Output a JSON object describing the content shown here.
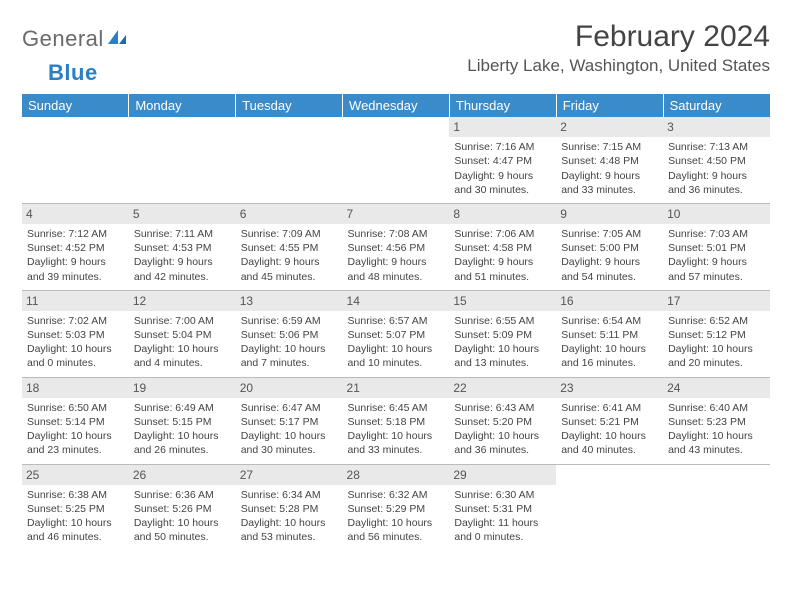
{
  "logo": {
    "text_gray": "General",
    "text_blue": "Blue"
  },
  "title": "February 2024",
  "location": "Liberty Lake, Washington, United States",
  "colors": {
    "header_bg": "#3a8bc9",
    "header_fg": "#ffffff",
    "daynum_bg": "#e9e9e9",
    "text": "#444444",
    "divider": "#bbbbbb",
    "logo_gray": "#6a6a6a",
    "logo_blue": "#2b7fc3"
  },
  "day_names": [
    "Sunday",
    "Monday",
    "Tuesday",
    "Wednesday",
    "Thursday",
    "Friday",
    "Saturday"
  ],
  "weeks": [
    [
      {
        "empty": true
      },
      {
        "empty": true
      },
      {
        "empty": true
      },
      {
        "empty": true
      },
      {
        "d": "1",
        "sr": "7:16 AM",
        "ss": "4:47 PM",
        "dl1": "Daylight: 9 hours",
        "dl2": "and 30 minutes."
      },
      {
        "d": "2",
        "sr": "7:15 AM",
        "ss": "4:48 PM",
        "dl1": "Daylight: 9 hours",
        "dl2": "and 33 minutes."
      },
      {
        "d": "3",
        "sr": "7:13 AM",
        "ss": "4:50 PM",
        "dl1": "Daylight: 9 hours",
        "dl2": "and 36 minutes."
      }
    ],
    [
      {
        "d": "4",
        "sr": "7:12 AM",
        "ss": "4:52 PM",
        "dl1": "Daylight: 9 hours",
        "dl2": "and 39 minutes."
      },
      {
        "d": "5",
        "sr": "7:11 AM",
        "ss": "4:53 PM",
        "dl1": "Daylight: 9 hours",
        "dl2": "and 42 minutes."
      },
      {
        "d": "6",
        "sr": "7:09 AM",
        "ss": "4:55 PM",
        "dl1": "Daylight: 9 hours",
        "dl2": "and 45 minutes."
      },
      {
        "d": "7",
        "sr": "7:08 AM",
        "ss": "4:56 PM",
        "dl1": "Daylight: 9 hours",
        "dl2": "and 48 minutes."
      },
      {
        "d": "8",
        "sr": "7:06 AM",
        "ss": "4:58 PM",
        "dl1": "Daylight: 9 hours",
        "dl2": "and 51 minutes."
      },
      {
        "d": "9",
        "sr": "7:05 AM",
        "ss": "5:00 PM",
        "dl1": "Daylight: 9 hours",
        "dl2": "and 54 minutes."
      },
      {
        "d": "10",
        "sr": "7:03 AM",
        "ss": "5:01 PM",
        "dl1": "Daylight: 9 hours",
        "dl2": "and 57 minutes."
      }
    ],
    [
      {
        "d": "11",
        "sr": "7:02 AM",
        "ss": "5:03 PM",
        "dl1": "Daylight: 10 hours",
        "dl2": "and 0 minutes."
      },
      {
        "d": "12",
        "sr": "7:00 AM",
        "ss": "5:04 PM",
        "dl1": "Daylight: 10 hours",
        "dl2": "and 4 minutes."
      },
      {
        "d": "13",
        "sr": "6:59 AM",
        "ss": "5:06 PM",
        "dl1": "Daylight: 10 hours",
        "dl2": "and 7 minutes."
      },
      {
        "d": "14",
        "sr": "6:57 AM",
        "ss": "5:07 PM",
        "dl1": "Daylight: 10 hours",
        "dl2": "and 10 minutes."
      },
      {
        "d": "15",
        "sr": "6:55 AM",
        "ss": "5:09 PM",
        "dl1": "Daylight: 10 hours",
        "dl2": "and 13 minutes."
      },
      {
        "d": "16",
        "sr": "6:54 AM",
        "ss": "5:11 PM",
        "dl1": "Daylight: 10 hours",
        "dl2": "and 16 minutes."
      },
      {
        "d": "17",
        "sr": "6:52 AM",
        "ss": "5:12 PM",
        "dl1": "Daylight: 10 hours",
        "dl2": "and 20 minutes."
      }
    ],
    [
      {
        "d": "18",
        "sr": "6:50 AM",
        "ss": "5:14 PM",
        "dl1": "Daylight: 10 hours",
        "dl2": "and 23 minutes."
      },
      {
        "d": "19",
        "sr": "6:49 AM",
        "ss": "5:15 PM",
        "dl1": "Daylight: 10 hours",
        "dl2": "and 26 minutes."
      },
      {
        "d": "20",
        "sr": "6:47 AM",
        "ss": "5:17 PM",
        "dl1": "Daylight: 10 hours",
        "dl2": "and 30 minutes."
      },
      {
        "d": "21",
        "sr": "6:45 AM",
        "ss": "5:18 PM",
        "dl1": "Daylight: 10 hours",
        "dl2": "and 33 minutes."
      },
      {
        "d": "22",
        "sr": "6:43 AM",
        "ss": "5:20 PM",
        "dl1": "Daylight: 10 hours",
        "dl2": "and 36 minutes."
      },
      {
        "d": "23",
        "sr": "6:41 AM",
        "ss": "5:21 PM",
        "dl1": "Daylight: 10 hours",
        "dl2": "and 40 minutes."
      },
      {
        "d": "24",
        "sr": "6:40 AM",
        "ss": "5:23 PM",
        "dl1": "Daylight: 10 hours",
        "dl2": "and 43 minutes."
      }
    ],
    [
      {
        "d": "25",
        "sr": "6:38 AM",
        "ss": "5:25 PM",
        "dl1": "Daylight: 10 hours",
        "dl2": "and 46 minutes."
      },
      {
        "d": "26",
        "sr": "6:36 AM",
        "ss": "5:26 PM",
        "dl1": "Daylight: 10 hours",
        "dl2": "and 50 minutes."
      },
      {
        "d": "27",
        "sr": "6:34 AM",
        "ss": "5:28 PM",
        "dl1": "Daylight: 10 hours",
        "dl2": "and 53 minutes."
      },
      {
        "d": "28",
        "sr": "6:32 AM",
        "ss": "5:29 PM",
        "dl1": "Daylight: 10 hours",
        "dl2": "and 56 minutes."
      },
      {
        "d": "29",
        "sr": "6:30 AM",
        "ss": "5:31 PM",
        "dl1": "Daylight: 11 hours",
        "dl2": "and 0 minutes."
      },
      {
        "empty": true
      },
      {
        "empty": true
      }
    ]
  ],
  "labels": {
    "sunrise": "Sunrise: ",
    "sunset": "Sunset: "
  }
}
